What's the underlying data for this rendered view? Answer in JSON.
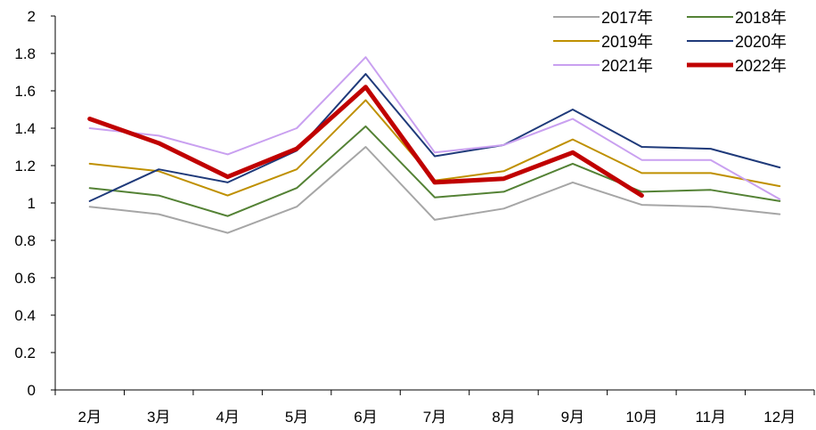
{
  "chart_data": {
    "type": "line",
    "title": "",
    "xlabel": "",
    "ylabel": "",
    "categories": [
      "2月",
      "3月",
      "4月",
      "5月",
      "6月",
      "7月",
      "8月",
      "9月",
      "10月",
      "11月",
      "12月"
    ],
    "ylim": [
      0,
      2
    ],
    "yticks": [
      "0",
      "0.2",
      "0.4",
      "0.6",
      "0.8",
      "1",
      "1.2",
      "1.4",
      "1.6",
      "1.8",
      "2"
    ],
    "grid": false,
    "legend_position": "top-right",
    "series": [
      {
        "name": "2017年",
        "color": "#a6a6a6",
        "values": [
          0.98,
          0.94,
          0.84,
          0.98,
          1.3,
          0.91,
          0.97,
          1.11,
          0.99,
          0.98,
          0.94
        ]
      },
      {
        "name": "2018年",
        "color": "#548235",
        "values": [
          1.08,
          1.04,
          0.93,
          1.08,
          1.41,
          1.03,
          1.06,
          1.21,
          1.06,
          1.07,
          1.01
        ]
      },
      {
        "name": "2019年",
        "color": "#bf9000",
        "values": [
          1.21,
          1.17,
          1.04,
          1.18,
          1.55,
          1.12,
          1.17,
          1.34,
          1.16,
          1.16,
          1.09
        ]
      },
      {
        "name": "2020年",
        "color": "#1f3a7a",
        "values": [
          1.01,
          1.18,
          1.11,
          1.28,
          1.69,
          1.25,
          1.31,
          1.5,
          1.3,
          1.29,
          1.19
        ]
      },
      {
        "name": "2021年",
        "color": "#c9a0f0",
        "values": [
          1.4,
          1.36,
          1.26,
          1.4,
          1.78,
          1.27,
          1.31,
          1.45,
          1.23,
          1.23,
          1.02
        ]
      },
      {
        "name": "2022年",
        "color": "#c00000",
        "values": [
          1.45,
          1.32,
          1.14,
          1.29,
          1.62,
          1.11,
          1.13,
          1.27,
          1.04,
          null,
          null
        ]
      }
    ]
  }
}
